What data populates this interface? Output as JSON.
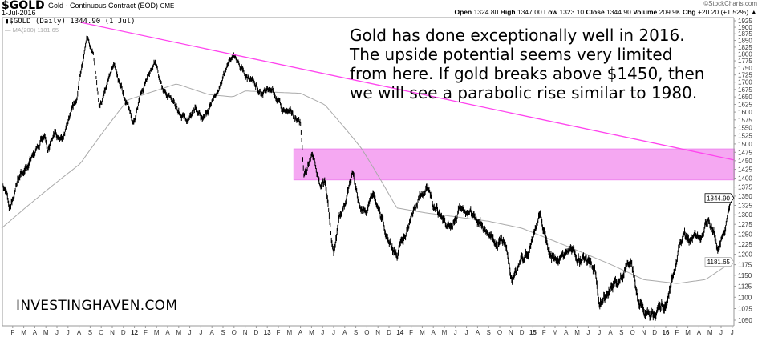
{
  "header": {
    "symbol": "$GOLD",
    "description": "Gold - Continuous Contract (EOD)",
    "exchange": "CME",
    "date": "1-Jul-2016",
    "copyright": "©StockCharts.com",
    "quote": {
      "open_label": "Open",
      "open": "1324.80",
      "high_label": "High",
      "high": "1347.00",
      "low_label": "Low",
      "low": "1323.10",
      "close_label": "Close",
      "close": "1344.90",
      "volume_label": "Volume",
      "volume": "209.9K",
      "chg_label": "Chg",
      "chg": "+20.20 (+1.52%)",
      "chg_arrow": "▲"
    },
    "legend_price": "$GOLD (Daily) 1344.90 (1 Jul)",
    "legend_ma": "MA(200) 1181.65"
  },
  "annotation": [
    "Gold has done exceptionally well in 2016.",
    "The upside potential seems very limited",
    "from here. If gold breaks above $1450, then",
    "we will see a parabolic rise similar to 1980."
  ],
  "brand": "INVESTINGHAVEN.COM",
  "colors": {
    "price": "#000000",
    "ma": "#aaaaaa",
    "trendline": "#ff44ee",
    "zone": "#f5a8f2"
  },
  "chart_data": {
    "type": "line",
    "title": "$GOLD Gold - Continuous Contract (EOD)",
    "x_unit": "months since Jan 2011",
    "y_scale": "log",
    "ylim": [
      1040,
      1935
    ],
    "xlim": [
      0,
      66.2
    ],
    "y_ticks": [
      1050,
      1075,
      1100,
      1125,
      1150,
      1175,
      1200,
      1225,
      1250,
      1275,
      1300,
      1325,
      1350,
      1375,
      1400,
      1425,
      1450,
      1475,
      1500,
      1525,
      1550,
      1575,
      1600,
      1625,
      1650,
      1675,
      1700,
      1725,
      1750,
      1775,
      1800,
      1825,
      1850,
      1875,
      1900,
      1925
    ],
    "x_ticks": [
      {
        "m": 1,
        "label": "F"
      },
      {
        "m": 2,
        "label": "M"
      },
      {
        "m": 3,
        "label": "A"
      },
      {
        "m": 4,
        "label": "M"
      },
      {
        "m": 5,
        "label": "J"
      },
      {
        "m": 6,
        "label": "J"
      },
      {
        "m": 7,
        "label": "A"
      },
      {
        "m": 8,
        "label": "S"
      },
      {
        "m": 9,
        "label": "O"
      },
      {
        "m": 10,
        "label": "N"
      },
      {
        "m": 11,
        "label": "D"
      },
      {
        "m": 12,
        "label": "12",
        "year": true
      },
      {
        "m": 13,
        "label": "F"
      },
      {
        "m": 14,
        "label": "M"
      },
      {
        "m": 15,
        "label": "A"
      },
      {
        "m": 16,
        "label": "M"
      },
      {
        "m": 17,
        "label": "J"
      },
      {
        "m": 18,
        "label": "J"
      },
      {
        "m": 19,
        "label": "A"
      },
      {
        "m": 20,
        "label": "S"
      },
      {
        "m": 21,
        "label": "O"
      },
      {
        "m": 22,
        "label": "N"
      },
      {
        "m": 23,
        "label": "D"
      },
      {
        "m": 24,
        "label": "13",
        "year": true
      },
      {
        "m": 25,
        "label": "F"
      },
      {
        "m": 26,
        "label": "M"
      },
      {
        "m": 27,
        "label": "A"
      },
      {
        "m": 28,
        "label": "M"
      },
      {
        "m": 29,
        "label": "J"
      },
      {
        "m": 30,
        "label": "J"
      },
      {
        "m": 31,
        "label": "A"
      },
      {
        "m": 32,
        "label": "S"
      },
      {
        "m": 33,
        "label": "O"
      },
      {
        "m": 34,
        "label": "N"
      },
      {
        "m": 35,
        "label": "D"
      },
      {
        "m": 36,
        "label": "14",
        "year": true
      },
      {
        "m": 37,
        "label": "F"
      },
      {
        "m": 38,
        "label": "M"
      },
      {
        "m": 39,
        "label": "A"
      },
      {
        "m": 40,
        "label": "M"
      },
      {
        "m": 41,
        "label": "J"
      },
      {
        "m": 42,
        "label": "J"
      },
      {
        "m": 43,
        "label": "A"
      },
      {
        "m": 44,
        "label": "S"
      },
      {
        "m": 45,
        "label": "O"
      },
      {
        "m": 46,
        "label": "N"
      },
      {
        "m": 47,
        "label": "D"
      },
      {
        "m": 48,
        "label": "15",
        "year": true
      },
      {
        "m": 49,
        "label": "F"
      },
      {
        "m": 50,
        "label": "M"
      },
      {
        "m": 51,
        "label": "A"
      },
      {
        "m": 52,
        "label": "M"
      },
      {
        "m": 53,
        "label": "J"
      },
      {
        "m": 54,
        "label": "J"
      },
      {
        "m": 55,
        "label": "A"
      },
      {
        "m": 56,
        "label": "S"
      },
      {
        "m": 57,
        "label": "O"
      },
      {
        "m": 58,
        "label": "N"
      },
      {
        "m": 59,
        "label": "D"
      },
      {
        "m": 60,
        "label": "16",
        "year": true
      },
      {
        "m": 61,
        "label": "F"
      },
      {
        "m": 62,
        "label": "M"
      },
      {
        "m": 63,
        "label": "A"
      },
      {
        "m": 64,
        "label": "M"
      },
      {
        "m": 65,
        "label": "J"
      },
      {
        "m": 66,
        "label": "J"
      }
    ],
    "series": [
      {
        "name": "$GOLD (Daily)",
        "style": "price-bars",
        "points": [
          [
            0,
            1400
          ],
          [
            0.3,
            1370
          ],
          [
            0.7,
            1315
          ],
          [
            1,
            1340
          ],
          [
            1.5,
            1400
          ],
          [
            2.2,
            1430
          ],
          [
            3,
            1470
          ],
          [
            3.9,
            1540
          ],
          [
            4.2,
            1490
          ],
          [
            4.8,
            1530
          ],
          [
            5.5,
            1500
          ],
          [
            6,
            1560
          ],
          [
            6.8,
            1640
          ],
          [
            7.3,
            1770
          ],
          [
            7.7,
            1880
          ],
          [
            8,
            1820
          ],
          [
            8.3,
            1790
          ],
          [
            8.8,
            1620
          ],
          [
            9.1,
            1640
          ],
          [
            9.6,
            1690
          ],
          [
            10.2,
            1760
          ],
          [
            10.6,
            1700
          ],
          [
            11.2,
            1640
          ],
          [
            11.9,
            1560
          ],
          [
            12.5,
            1640
          ],
          [
            13.3,
            1740
          ],
          [
            13.9,
            1780
          ],
          [
            14.3,
            1700
          ],
          [
            14.8,
            1660
          ],
          [
            15.3,
            1640
          ],
          [
            16.2,
            1590
          ],
          [
            16.8,
            1560
          ],
          [
            17.5,
            1610
          ],
          [
            18.2,
            1580
          ],
          [
            18.8,
            1620
          ],
          [
            19.7,
            1680
          ],
          [
            20.5,
            1760
          ],
          [
            21,
            1790
          ],
          [
            21.5,
            1740
          ],
          [
            22.2,
            1720
          ],
          [
            22.8,
            1700
          ],
          [
            23.5,
            1660
          ],
          [
            24.5,
            1680
          ],
          [
            25.3,
            1610
          ],
          [
            26.2,
            1590
          ],
          [
            27,
            1570
          ],
          [
            27.3,
            1400
          ],
          [
            27.6,
            1420
          ],
          [
            28,
            1470
          ],
          [
            28.5,
            1390
          ],
          [
            29.2,
            1380
          ],
          [
            29.8,
            1230
          ],
          [
            30,
            1200
          ],
          [
            30.5,
            1290
          ],
          [
            31,
            1330
          ],
          [
            31.7,
            1410
          ],
          [
            32.3,
            1330
          ],
          [
            32.9,
            1300
          ],
          [
            33.6,
            1350
          ],
          [
            34.3,
            1290
          ],
          [
            35,
            1230
          ],
          [
            35.8,
            1200
          ],
          [
            36.5,
            1250
          ],
          [
            37.3,
            1330
          ],
          [
            38.5,
            1380
          ],
          [
            39,
            1320
          ],
          [
            39.8,
            1295
          ],
          [
            40.6,
            1250
          ],
          [
            41.5,
            1320
          ],
          [
            42.4,
            1310
          ],
          [
            43.2,
            1290
          ],
          [
            44,
            1250
          ],
          [
            44.8,
            1220
          ],
          [
            45.5,
            1230
          ],
          [
            46.1,
            1140
          ],
          [
            46.8,
            1180
          ],
          [
            47.5,
            1200
          ],
          [
            48.2,
            1270
          ],
          [
            48.7,
            1300
          ],
          [
            49.2,
            1230
          ],
          [
            49.8,
            1200
          ],
          [
            50.5,
            1190
          ],
          [
            51.2,
            1210
          ],
          [
            52,
            1200
          ],
          [
            52.8,
            1185
          ],
          [
            53.6,
            1160
          ],
          [
            54,
            1090
          ],
          [
            54.6,
            1110
          ],
          [
            55.2,
            1135
          ],
          [
            55.8,
            1115
          ],
          [
            56.5,
            1180
          ],
          [
            57,
            1160
          ],
          [
            57.5,
            1090
          ],
          [
            58.2,
            1065
          ],
          [
            58.9,
            1050
          ],
          [
            59.5,
            1075
          ],
          [
            60.2,
            1100
          ],
          [
            60.8,
            1160
          ],
          [
            61.3,
            1240
          ],
          [
            62.2,
            1240
          ],
          [
            63.2,
            1250
          ],
          [
            63.8,
            1290
          ],
          [
            64.1,
            1280
          ],
          [
            64.7,
            1215
          ],
          [
            65.3,
            1260
          ],
          [
            65.7,
            1330
          ],
          [
            66,
            1344.9
          ]
        ]
      },
      {
        "name": "MA(200)",
        "style": "line",
        "points": [
          [
            0,
            1265
          ],
          [
            7.1,
            1441
          ],
          [
            11.4,
            1640
          ],
          [
            15.8,
            1694
          ],
          [
            18.7,
            1658
          ],
          [
            20.9,
            1650
          ],
          [
            22,
            1670
          ],
          [
            27,
            1662
          ],
          [
            29.2,
            1624
          ],
          [
            32.5,
            1487
          ],
          [
            35.7,
            1318
          ],
          [
            38.3,
            1305
          ],
          [
            44,
            1283
          ],
          [
            47,
            1265
          ],
          [
            50.6,
            1225
          ],
          [
            54.9,
            1177
          ],
          [
            58,
            1140
          ],
          [
            61,
            1131
          ],
          [
            63.6,
            1140
          ],
          [
            66,
            1181.65
          ]
        ]
      }
    ],
    "trendline": {
      "from": [
        7.1,
        1919
      ],
      "to": [
        66.2,
        1452
      ]
    },
    "resistance_zone": {
      "from_month": 26.4,
      "to_month": 66.2,
      "low": 1395,
      "high": 1485
    },
    "price_tags": [
      {
        "label": "1344.90",
        "value": 1344.9,
        "series": "price"
      },
      {
        "label": "1181.65",
        "value": 1181.65,
        "series": "ma"
      }
    ]
  }
}
